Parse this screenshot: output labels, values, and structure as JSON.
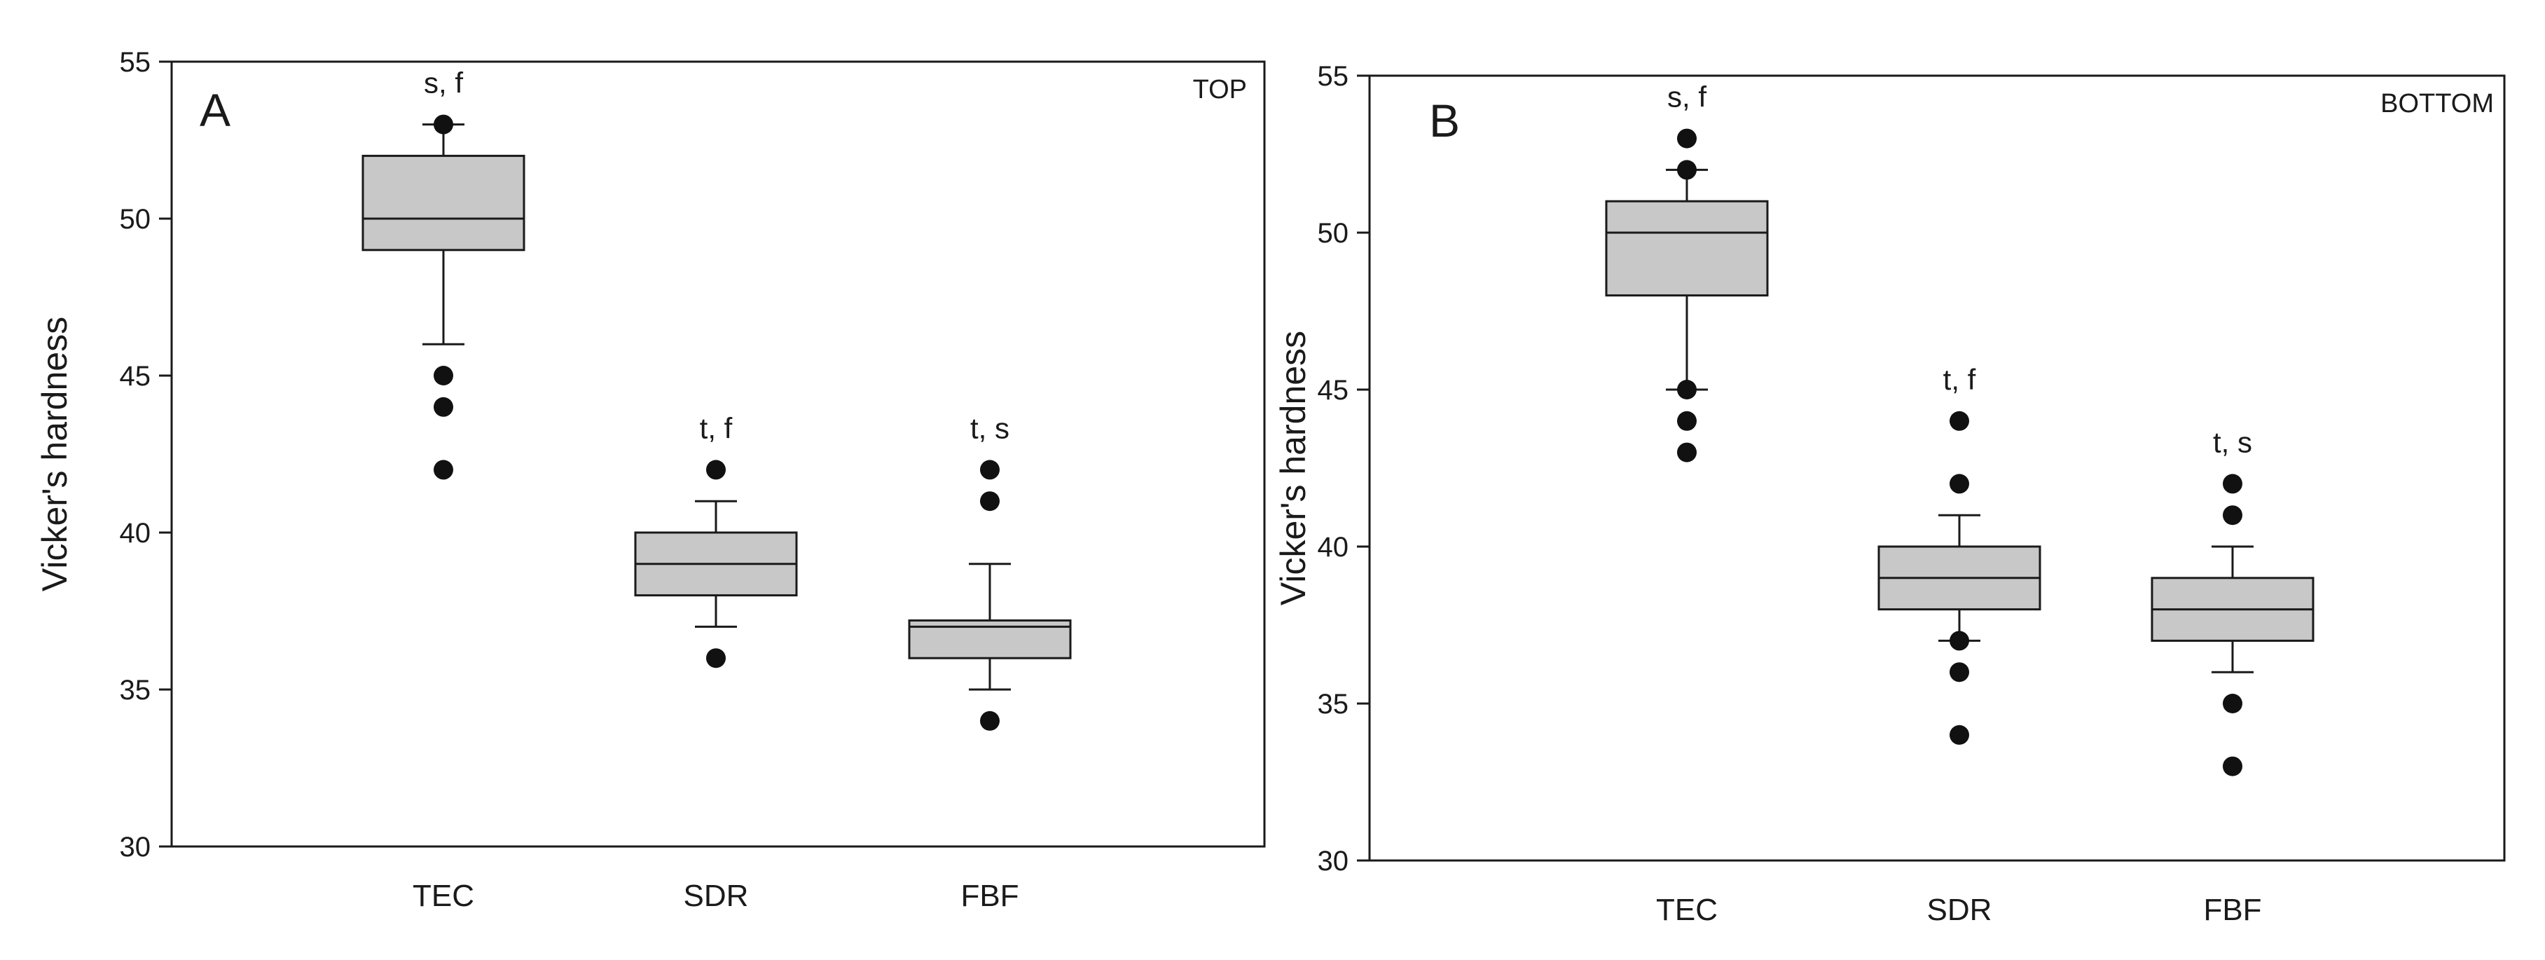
{
  "chart_data": [
    {
      "type": "box",
      "panel_label": "A",
      "position_tag": "TOP",
      "ylabel": "Vicker's hardness",
      "xlabel": "",
      "ylim": [
        30,
        55
      ],
      "yticks": [
        "30",
        "35",
        "40",
        "45",
        "50",
        "55"
      ],
      "categories": [
        "TEC",
        "SDR",
        "FBF"
      ],
      "boxes": [
        {
          "category": "TEC",
          "whisker_low": 46,
          "q1": 49,
          "median": 50,
          "q3": 52,
          "whisker_high": 53,
          "outliers": [
            53,
            45,
            44,
            42
          ],
          "annotation": "s, f"
        },
        {
          "category": "SDR",
          "whisker_low": 37,
          "q1": 38,
          "median": 39,
          "q3": 40,
          "whisker_high": 41,
          "outliers": [
            42,
            36
          ],
          "annotation": "t, f"
        },
        {
          "category": "FBF",
          "whisker_low": 35,
          "q1": 36,
          "median": 37,
          "q3": 37.2,
          "whisker_high": 39,
          "outliers": [
            42,
            41,
            34
          ],
          "annotation": "t, s"
        }
      ]
    },
    {
      "type": "box",
      "panel_label": "B",
      "position_tag": "BOTTOM",
      "ylabel": "Vicker's hardness",
      "xlabel": "",
      "ylim": [
        30,
        55
      ],
      "yticks": [
        "30",
        "35",
        "40",
        "45",
        "50",
        "55"
      ],
      "categories": [
        "TEC",
        "SDR",
        "FBF"
      ],
      "boxes": [
        {
          "category": "TEC",
          "whisker_low": 45,
          "q1": 48,
          "median": 50,
          "q3": 51,
          "whisker_high": 52,
          "outliers": [
            53,
            52,
            45,
            44,
            43
          ],
          "annotation": "s, f"
        },
        {
          "category": "SDR",
          "whisker_low": 37,
          "q1": 38,
          "median": 39,
          "q3": 40,
          "whisker_high": 41,
          "outliers": [
            44,
            42,
            37,
            36,
            34
          ],
          "annotation": "t, f"
        },
        {
          "category": "FBF",
          "whisker_low": 36,
          "q1": 37,
          "median": 38,
          "q3": 39,
          "whisker_high": 40,
          "outliers": [
            42,
            41,
            35,
            33
          ],
          "annotation": "t, s"
        }
      ]
    }
  ],
  "colors": {
    "box_fill": "#c8c8c8",
    "stroke": "#1a1a1a",
    "outlier": "#111111",
    "background": "#ffffff"
  }
}
